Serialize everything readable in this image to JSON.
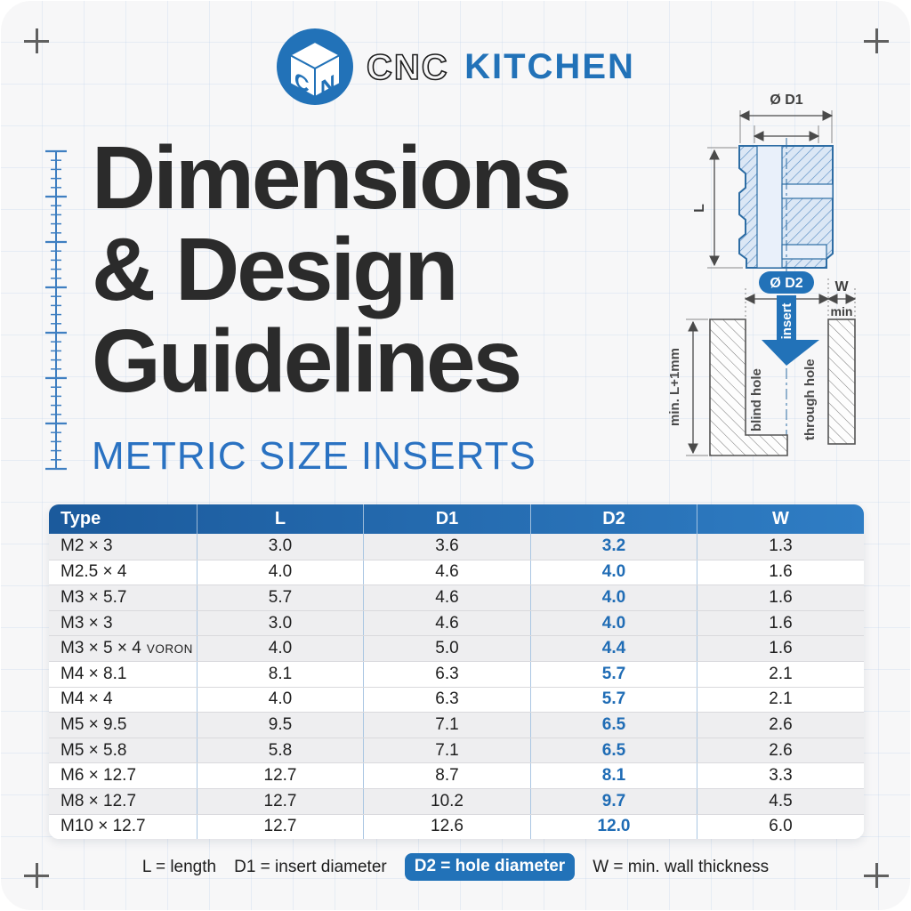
{
  "brand": {
    "name_prefix": "CNC",
    "name_suffix": "KITCHEN",
    "logo_letters_left": "C",
    "logo_letters_right": "N"
  },
  "title": {
    "lines": [
      "Dimensions",
      "& Design",
      "Guidelines"
    ],
    "subtitle": "METRIC SIZE INSERTS"
  },
  "diagram": {
    "labels": {
      "d1": "Ø D1",
      "l": "L",
      "d2": "Ø D2",
      "w": "W",
      "min": "min",
      "insert": "insert",
      "blind_hole": "blind hole",
      "through_hole": "through hole",
      "depth": "min. L+1mm"
    }
  },
  "table": {
    "columns": [
      "Type",
      "L",
      "D1",
      "D2",
      "W"
    ],
    "rows": [
      {
        "type": "M2 × 3",
        "suffix": "",
        "l": "3.0",
        "d1": "3.6",
        "d2": "3.2",
        "w": "1.3",
        "shaded": true
      },
      {
        "type": "M2.5 × 4",
        "suffix": "",
        "l": "4.0",
        "d1": "4.6",
        "d2": "4.0",
        "w": "1.6",
        "shaded": false
      },
      {
        "type": "M3 × 5.7",
        "suffix": "",
        "l": "5.7",
        "d1": "4.6",
        "d2": "4.0",
        "w": "1.6",
        "shaded": true
      },
      {
        "type": "M3 × 3",
        "suffix": "",
        "l": "3.0",
        "d1": "4.6",
        "d2": "4.0",
        "w": "1.6",
        "shaded": true
      },
      {
        "type": "M3 × 5 × 4",
        "suffix": "VORON",
        "l": "4.0",
        "d1": "5.0",
        "d2": "4.4",
        "w": "1.6",
        "shaded": true
      },
      {
        "type": "M4 × 8.1",
        "suffix": "",
        "l": "8.1",
        "d1": "6.3",
        "d2": "5.7",
        "w": "2.1",
        "shaded": false
      },
      {
        "type": "M4 × 4",
        "suffix": "",
        "l": "4.0",
        "d1": "6.3",
        "d2": "5.7",
        "w": "2.1",
        "shaded": false
      },
      {
        "type": "M5 × 9.5",
        "suffix": "",
        "l": "9.5",
        "d1": "7.1",
        "d2": "6.5",
        "w": "2.6",
        "shaded": true
      },
      {
        "type": "M5 × 5.8",
        "suffix": "",
        "l": "5.8",
        "d1": "7.1",
        "d2": "6.5",
        "w": "2.6",
        "shaded": true
      },
      {
        "type": "M6 × 12.7",
        "suffix": "",
        "l": "12.7",
        "d1": "8.7",
        "d2": "8.1",
        "w": "3.3",
        "shaded": false
      },
      {
        "type": "M8 × 12.7",
        "suffix": "",
        "l": "12.7",
        "d1": "10.2",
        "d2": "9.7",
        "w": "4.5",
        "shaded": true
      },
      {
        "type": "M10 × 12.7",
        "suffix": "",
        "l": "12.7",
        "d1": "12.6",
        "d2": "12.0",
        "w": "6.0",
        "shaded": false
      }
    ]
  },
  "legend": {
    "items": [
      {
        "label": "L = length",
        "pill": false
      },
      {
        "label": "D1 = insert diameter",
        "pill": false
      },
      {
        "label": "D2 = hole diameter",
        "pill": true
      },
      {
        "label": "W = min. wall thickness",
        "pill": false
      }
    ]
  },
  "colors": {
    "accent": "#2272b8",
    "header_gradient_start": "#1b5a9c",
    "header_gradient_end": "#2f7dc4",
    "d2_value": "#1f6cb5",
    "shaded_row": "#eeeef0",
    "title_text": "#2b2b2b",
    "subtitle_text": "#2a72c2",
    "drawing_blue": "#2e6da4",
    "card_background": "#f7f7f8"
  }
}
